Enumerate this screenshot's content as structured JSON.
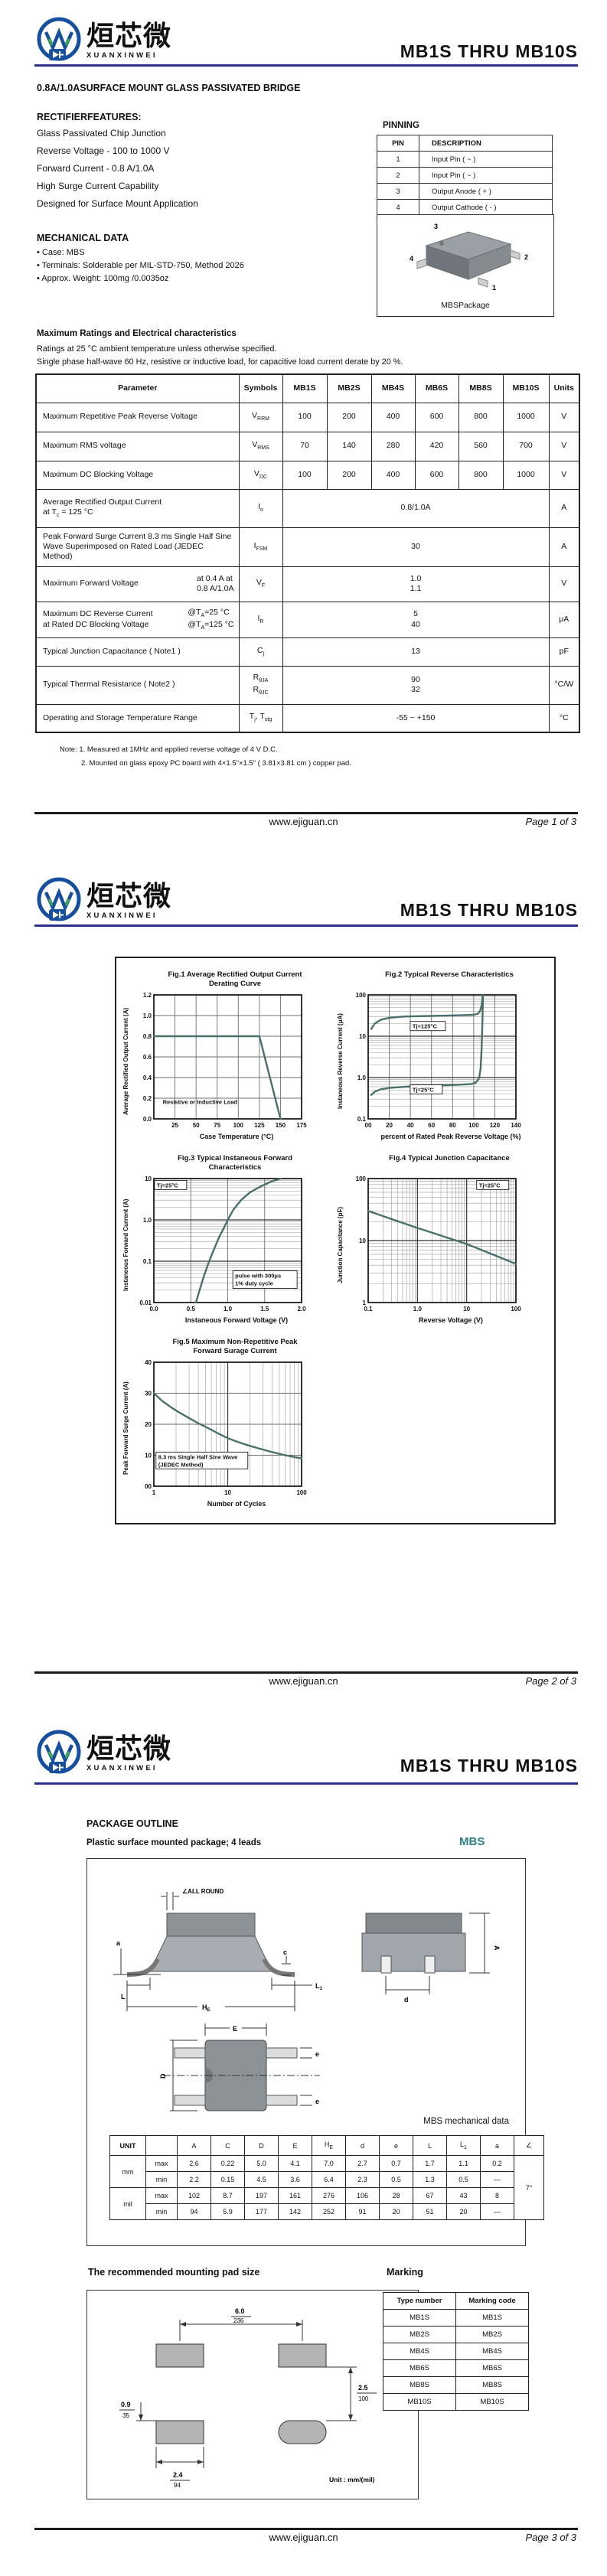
{
  "colors": {
    "rule_blue": "#2d2f8f",
    "footer_rule": "#1c1c1c",
    "teal": "#2f7f86",
    "curve": "#4a706d",
    "logo_blue": "#164f9e",
    "logo_green": "#3faf49"
  },
  "brand": {
    "cn": "烜芯微",
    "en": "XUANXINWEI"
  },
  "doc": {
    "title": "MB1S THRU MB10S",
    "site": "www.ejiguan.cn",
    "page1": "Page 1 of 3",
    "page2": "Page 2 of 3",
    "page3": "Page 3 of 3"
  },
  "page1": {
    "subtitle": "0.8A/1.0ASURFACE MOUNT GLASS PASSIVATED BRIDGE",
    "features_heading": "RECTIFIERFEATURES:",
    "features": [
      "Glass Passivated Chip Junction",
      "Reverse Voltage - 100 to 1000 V",
      "Forward Current - 0.8 A/1.0A",
      "High Surge Current Capability",
      "Designed for Surface Mount Application"
    ],
    "pinning": {
      "heading": "PINNING",
      "h_pin": "PIN",
      "h_desc": "DESCRIPTION",
      "rows": [
        [
          "1",
          "Input Pin ( ~ )"
        ],
        [
          "2",
          "Input Pin ( ~ )"
        ],
        [
          "3",
          "Output Anode ( + )"
        ],
        [
          "4",
          "Output Cathode ( - )"
        ]
      ]
    },
    "mech_heading": "MECHANICAL DATA",
    "mech_items": [
      "• Case: MBS",
      "• Terminals: Solderable per MIL-STD-750, Method 2026",
      "• Approx. Weight: 100mg /0.0035oz"
    ],
    "pkg": {
      "caption": "MBSPackage",
      "pins": [
        "3",
        "4",
        "2",
        "1"
      ]
    },
    "ratings_heading": "Maximum Ratings and Electrical characteristics",
    "cond1": "Ratings at 25 °C ambient temperature unless otherwise specified.",
    "cond2": "Single phase half-wave 60 Hz, resistive or inductive load, for capacitive load current derate by 20 %.",
    "ratings": {
      "headers": [
        "Parameter",
        "Symbols",
        "MB1S",
        "MB2S",
        "MB4S",
        "MB6S",
        "MB8S",
        "MB10S",
        "Units"
      ],
      "vrrm": {
        "p": "Maximum Repetitive Peak Reverse Voltage",
        "s": "V",
        "sub": "RRM",
        "v": [
          "100",
          "200",
          "400",
          "600",
          "800",
          "1000"
        ],
        "u": "V"
      },
      "vrms": {
        "p": "Maximum RMS voltage",
        "s": "V",
        "sub": "RMS",
        "v": [
          "70",
          "140",
          "280",
          "420",
          "560",
          "700"
        ],
        "u": "V"
      },
      "vdc": {
        "p": "Maximum DC Blocking Voltage",
        "s": "V",
        "sub": "DC",
        "v": [
          "100",
          "200",
          "400",
          "600",
          "800",
          "1000"
        ],
        "u": "V"
      },
      "io": {
        "p1": "Average Rectified Output Current",
        "p2a": "at T",
        "p2sub": "c",
        "p2b": " = 125 °C",
        "s": "I",
        "sub": "o",
        "v": "0.8/1.0A",
        "u": "A"
      },
      "ifsm": {
        "p": "Peak Forward Surge Current 8.3 ms Single Half Sine Wave Superimposed on Rated Load (JEDEC Method)",
        "s": "I",
        "sub": "FSM",
        "v": "30",
        "u": "A"
      },
      "vf": {
        "p": "Maximum  Forward Voltage",
        "c1": "at 0.4 A at",
        "c2": "0.8 A/1.0A",
        "s": "V",
        "sub": "F",
        "v1": "1.0",
        "v2": "1.1",
        "u": "V"
      },
      "ir": {
        "p1": "Maximum DC Reverse Current",
        "p2": "at Rated DC Blocking Voltage",
        "c1a": "@T",
        "c1sub": "A",
        "c1b": "=25 °C",
        "c2a": "@T",
        "c2sub": "A",
        "c2b": "=125 °C",
        "s": "I",
        "sub": "R",
        "v1": "5",
        "v2": "40",
        "u": "μA"
      },
      "cj": {
        "p": "Typical Junction Capacitance ( Note1 )",
        "s": "C",
        "sub": "j",
        "v": "13",
        "u": "pF"
      },
      "rth": {
        "p": "Typical Thermal Resistance ( Note2 )",
        "s1": "R",
        "sub1": "θJA",
        "s2": "R",
        "sub2": "θJC",
        "v1": "90",
        "v2": "32",
        "u": "°C/W"
      },
      "temp": {
        "p": "Operating and Storage Temperature Range",
        "sa": "T",
        "suba": "j",
        "sb": ", T",
        "subb": "stg",
        "v": "-55 ~ +150",
        "u": "°C"
      }
    },
    "note1": "Note:  1. Measured at 1MHz and applied reverse voltage of 4 V D.C.",
    "note2": "2. Mounted on glass epoxy PC board with 4×1.5\"×1.5\" ( 3.81×3.81 cm ) copper pad."
  },
  "chart_data": [
    {
      "type": "line",
      "title1": "Fig.1  Average Rectified Output Current",
      "title2": "Derating Curve",
      "xlabel": "Case Temperature (°C)",
      "ylabel": "Average Rectified Output Current (A)",
      "xscale": "linear",
      "xmin": 0,
      "xmax": 175,
      "xticks": [
        [
          25,
          "25"
        ],
        [
          50,
          "50"
        ],
        [
          75,
          "75"
        ],
        [
          100,
          "100"
        ],
        [
          125,
          "125"
        ],
        [
          150,
          "150"
        ],
        [
          175,
          "175"
        ]
      ],
      "yscale": "linear",
      "ymin": 0,
      "ymax": 1.2,
      "yticks": [
        [
          0,
          "0.0"
        ],
        [
          0.2,
          "0.2"
        ],
        [
          0.4,
          "0.4"
        ],
        [
          0.6,
          "0.6"
        ],
        [
          0.8,
          "0.8"
        ],
        [
          1,
          "1.0"
        ],
        [
          1.2,
          "1.2"
        ]
      ],
      "series": [
        {
          "name": "derating",
          "points": [
            [
              0,
              0.8
            ],
            [
              125,
              0.8
            ],
            [
              150,
              0
            ]
          ]
        }
      ],
      "annotations": [
        {
          "lines": [
            "Resistive or Inductive Load"
          ],
          "fx": 0.06,
          "fy": 0.88,
          "box": false,
          "bw": 0,
          "bh": 0
        }
      ]
    },
    {
      "type": "line",
      "title1": "Fig.2  Typical Reverse Characteristics",
      "title2": "",
      "xlabel": "percent of Rated  Peak Reverse Voltage (%)",
      "ylabel": "Instaneous Reverse Current (μA)",
      "xscale": "linear",
      "xmin": 0,
      "xmax": 140,
      "xticks": [
        [
          0,
          "00"
        ],
        [
          20,
          "20"
        ],
        [
          40,
          "40"
        ],
        [
          60,
          "60"
        ],
        [
          80,
          "80"
        ],
        [
          100,
          "100"
        ],
        [
          120,
          "120"
        ],
        [
          140,
          "140"
        ]
      ],
      "yscale": "log",
      "ymin": 0.1,
      "ymax": 100,
      "yticks": [
        [
          0.1,
          "0.1"
        ],
        [
          1,
          "1.0"
        ],
        [
          10,
          "10"
        ],
        [
          100,
          "100"
        ]
      ],
      "series": [
        {
          "name": "Tj=125°C",
          "points": [
            [
              3,
              15
            ],
            [
              6,
              20
            ],
            [
              12,
              25
            ],
            [
              20,
              28
            ],
            [
              35,
              30
            ],
            [
              60,
              31
            ],
            [
              85,
              32
            ],
            [
              100,
              33
            ],
            [
              104,
              35
            ],
            [
              106,
              40
            ],
            [
              107.5,
              55
            ],
            [
              108.5,
              100
            ]
          ]
        },
        {
          "name": "Tj=25°C",
          "points": [
            [
              3,
              0.38
            ],
            [
              6,
              0.45
            ],
            [
              12,
              0.52
            ],
            [
              20,
              0.56
            ],
            [
              35,
              0.6
            ],
            [
              60,
              0.64
            ],
            [
              85,
              0.67
            ],
            [
              98,
              0.7
            ],
            [
              102,
              0.75
            ],
            [
              105,
              0.95
            ],
            [
              106.5,
              1.6
            ],
            [
              107.5,
              5
            ],
            [
              108.2,
              20
            ],
            [
              108.8,
              100
            ]
          ]
        }
      ],
      "annotations": [
        {
          "lines": [
            "Tj=125°C"
          ],
          "fx": 0.3,
          "fy": 0.27,
          "box": true,
          "bw": 46,
          "bh": 12
        },
        {
          "lines": [
            "Tj=25°C"
          ],
          "fx": 0.3,
          "fy": 0.78,
          "box": true,
          "bw": 42,
          "bh": 12
        }
      ]
    },
    {
      "type": "line",
      "title1": "Fig.3  Typical Instaneous Forward",
      "title2": "Characteristics",
      "xlabel": "Instaneous Forward Voltage (V)",
      "ylabel": "Instaneous Forward Current (A)",
      "xscale": "linear",
      "xmin": 0,
      "xmax": 2,
      "xticks": [
        [
          0,
          "0.0"
        ],
        [
          0.5,
          "0.5"
        ],
        [
          1,
          "1.0"
        ],
        [
          1.5,
          "1.5"
        ],
        [
          2,
          "2.0"
        ]
      ],
      "yscale": "log",
      "ymin": 0.01,
      "ymax": 10,
      "yticks": [
        [
          0.01,
          "0.01"
        ],
        [
          0.1,
          "0.1"
        ],
        [
          1,
          "1.0"
        ],
        [
          10,
          "10"
        ]
      ],
      "series": [
        {
          "name": "Tj=25°C",
          "points": [
            [
              0.57,
              0.01
            ],
            [
              0.62,
              0.02
            ],
            [
              0.68,
              0.045
            ],
            [
              0.74,
              0.09
            ],
            [
              0.8,
              0.17
            ],
            [
              0.88,
              0.37
            ],
            [
              0.95,
              0.65
            ],
            [
              1,
              1
            ],
            [
              1.08,
              1.8
            ],
            [
              1.18,
              3
            ],
            [
              1.3,
              4.6
            ],
            [
              1.45,
              6.5
            ],
            [
              1.6,
              8.6
            ],
            [
              1.72,
              10
            ]
          ]
        }
      ],
      "annotations": [
        {
          "lines": [
            "Tj=25°C"
          ],
          "fx": 0.02,
          "fy": 0.07,
          "box": true,
          "bw": 42,
          "bh": 12
        },
        {
          "lines": [
            "pulse with 300μs",
            "1% duty cycle"
          ],
          "fx": 0.55,
          "fy": 0.8,
          "box": true,
          "bw": 84,
          "bh": 23
        }
      ]
    },
    {
      "type": "line",
      "title1": "Fig.4  Typical Junction Capacitance",
      "title2": "",
      "xlabel": "Reverse  Voltage (V)",
      "ylabel": "Junction Capacitance (pF)",
      "xscale": "log",
      "xmin": 0.1,
      "xmax": 100,
      "xticks": [
        [
          0.1,
          "0.1"
        ],
        [
          1,
          "1.0"
        ],
        [
          10,
          "10"
        ],
        [
          100,
          "100"
        ]
      ],
      "yscale": "log",
      "ymin": 1,
      "ymax": 100,
      "yticks": [
        [
          1,
          "1"
        ],
        [
          10,
          "10"
        ],
        [
          100,
          "100"
        ]
      ],
      "series": [
        {
          "name": "Tj=25°C",
          "points": [
            [
              0.1,
              30
            ],
            [
              1,
              16
            ],
            [
              10,
              8.8
            ],
            [
              100,
              4.2
            ]
          ]
        }
      ],
      "annotations": [
        {
          "lines": [
            "Tj=25°C"
          ],
          "fx": 0.75,
          "fy": 0.07,
          "box": true,
          "bw": 42,
          "bh": 12
        }
      ]
    },
    {
      "type": "line",
      "title1": "Fig.5  Maximum Non-Repetitive Peak",
      "title2": "Forward Surage Current",
      "xlabel": "Number of Cycles",
      "ylabel": "Peak Forward Surge Current (A)",
      "xscale": "log",
      "xmin": 1,
      "xmax": 100,
      "xticks": [
        [
          1,
          "1"
        ],
        [
          10,
          "10"
        ],
        [
          100,
          "100"
        ]
      ],
      "yscale": "linear",
      "ymin": 0,
      "ymax": 40,
      "yticks": [
        [
          0,
          "00"
        ],
        [
          10,
          "10"
        ],
        [
          20,
          "20"
        ],
        [
          30,
          "30"
        ],
        [
          40,
          "40"
        ]
      ],
      "series": [
        {
          "name": "8.3 ms Single Half Sine Wave (JEDEC Method)",
          "points": [
            [
              1,
              30
            ],
            [
              1.3,
              27.5
            ],
            [
              1.7,
              25.5
            ],
            [
              2.2,
              23.8
            ],
            [
              3,
              22
            ],
            [
              4,
              20.3
            ],
            [
              5.5,
              18.7
            ],
            [
              7.5,
              17
            ],
            [
              10,
              15.5
            ],
            [
              14,
              14.2
            ],
            [
              20,
              13
            ],
            [
              28,
              12
            ],
            [
              40,
              11
            ],
            [
              55,
              10.2
            ],
            [
              75,
              9.5
            ],
            [
              100,
              9
            ]
          ]
        }
      ],
      "annotations": [
        {
          "lines": [
            "8.3 ms Single Half Sine Wave",
            "(JEDEC Method)"
          ],
          "fx": 0.03,
          "fy": 0.78,
          "box": true,
          "bw": 120,
          "bh": 22
        }
      ]
    }
  ],
  "page3": {
    "outline_heading": "PACKAGE  OUTLINE",
    "outline_sub": "Plastic surface mounted package; 4 leads",
    "pkg_name": "MBS",
    "labels": {
      "all_round": "∠ALL ROUND",
      "a": "a",
      "L": "L",
      "L1": "L",
      "L1s": "1",
      "He": "H",
      "Hes": "E",
      "c": "c",
      "A": "A",
      "d": "d",
      "D": "D",
      "E": "E",
      "e": "e"
    },
    "mech": {
      "title": "MBS mechanical data",
      "h": {
        "unit": "UNIT",
        "A": "A",
        "C": "C",
        "D": "D",
        "E": "E",
        "He": "H",
        "Hes": "E",
        "d": "d",
        "e": "e",
        "L": "L",
        "L1": "L",
        "L1s": "1",
        "a": "a",
        "ang": "∠"
      },
      "mm": "mm",
      "mil": "mil",
      "max": "max",
      "min": "min",
      "mm_max": [
        "2.6",
        "0.22",
        "5.0",
        "4.1",
        "7.0",
        "2.7",
        "0.7",
        "1.7",
        "1.1",
        "0.2"
      ],
      "mm_min": [
        "2.2",
        "0.15",
        "4.5",
        "3.6",
        "6.4",
        "2.3",
        "0.5",
        "1.3",
        "0.5",
        "—"
      ],
      "mil_max": [
        "102",
        "8.7",
        "197",
        "161",
        "276",
        "106",
        "28",
        "67",
        "43",
        "8"
      ],
      "mil_min": [
        "94",
        "5.9",
        "177",
        "142",
        "252",
        "91",
        "20",
        "51",
        "20",
        "—"
      ],
      "angle": "7°"
    },
    "pad": {
      "heading": "The recommended mounting pad size",
      "top_mm": "6.0",
      "top_mil": "236",
      "left_mm": "0.9",
      "left_mil": "35",
      "w_mm": "2.4",
      "w_mil": "94",
      "r_mm": "2.5",
      "r_mil": "100",
      "unit": "Unit : mm/(mil)"
    },
    "marking": {
      "heading": "Marking",
      "h_type": "Type number",
      "h_code": "Marking code",
      "rows": [
        [
          "MB1S",
          "MB1S"
        ],
        [
          "MB2S",
          "MB2S"
        ],
        [
          "MB4S",
          "MB4S"
        ],
        [
          "MB6S",
          "MB6S"
        ],
        [
          "MB8S",
          "MB8S"
        ],
        [
          "MB10S",
          "MB10S"
        ]
      ]
    }
  }
}
